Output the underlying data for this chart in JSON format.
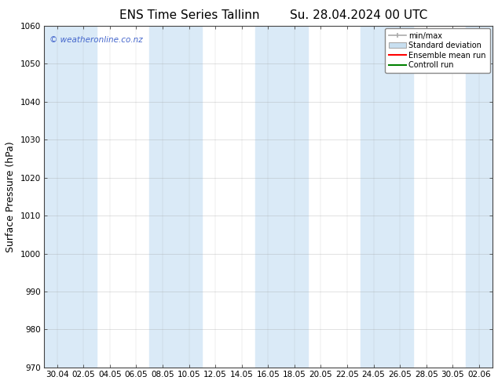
{
  "title": "ENS Time Series Tallinn",
  "title2": "Su. 28.04.2024 00 UTC",
  "ylabel": "Surface Pressure (hPa)",
  "ylim": [
    970,
    1060
  ],
  "yticks": [
    970,
    980,
    990,
    1000,
    1010,
    1020,
    1030,
    1040,
    1050,
    1060
  ],
  "x_labels": [
    "30.04",
    "02.05",
    "04.05",
    "06.05",
    "08.05",
    "10.05",
    "12.05",
    "14.05",
    "16.05",
    "18.05",
    "20.05",
    "22.05",
    "24.05",
    "26.05",
    "28.05",
    "30.05",
    "02.06"
  ],
  "watermark": "© weatheronline.co.nz",
  "legend_entries": [
    "min/max",
    "Standard deviation",
    "Ensemble mean run",
    "Controll run"
  ],
  "bg_color": "#ffffff",
  "plot_bg": "#ffffff",
  "stripe_color": "#daeaf7",
  "grid_color": "#999999",
  "title_fontsize": 11,
  "label_fontsize": 9,
  "tick_fontsize": 7.5,
  "watermark_color": "#4466cc",
  "minmax_color": "#aaaaaa",
  "std_face_color": "#c8dff0",
  "std_edge_color": "#aaaaaa",
  "ens_color": "#ff0000",
  "ctrl_color": "#008000"
}
